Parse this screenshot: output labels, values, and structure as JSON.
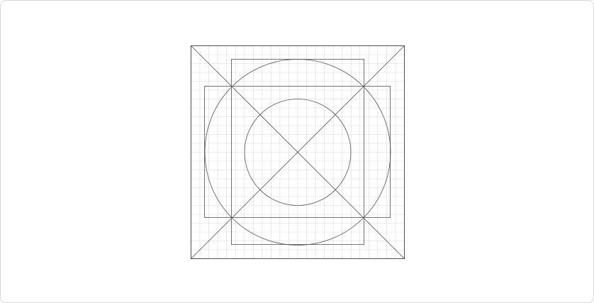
{
  "canvas": {
    "name": "icon-keyline-grid",
    "background_color": "#ffffff",
    "frame_border_color": "#d8d8d8"
  },
  "diagram": {
    "type": "icon-keyline-template",
    "grid_color": "#d9d9d9",
    "keyline_color": "#505050",
    "grid_divisions": 24,
    "shapes": [
      "outer-square",
      "diagonal-lines",
      "large-circle",
      "small-circle",
      "portrait-rectangle",
      "landscape-rectangle"
    ]
  }
}
